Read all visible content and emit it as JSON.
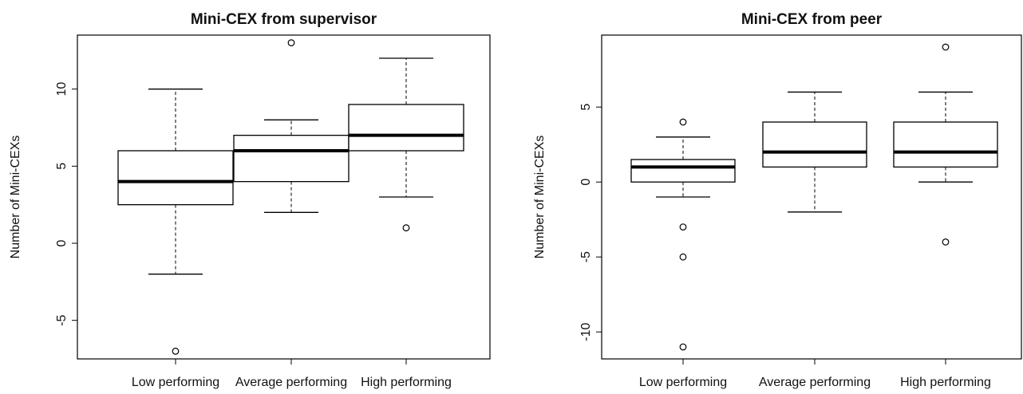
{
  "chart_data": [
    {
      "type": "boxplot",
      "title": "Mini-CEX from supervisor",
      "xlabel": "",
      "ylabel": "Number of Mini-CEXs",
      "categories": [
        "Low performing",
        "Average performing",
        "High performing"
      ],
      "ylim": [
        -7.5,
        13.5
      ],
      "yticks": [
        "-5",
        "0",
        "5",
        "10"
      ],
      "yticks_values": [
        -5,
        0,
        5,
        10
      ],
      "boxes": [
        {
          "category": "Low performing",
          "whisker_low": -2,
          "q1": 2.5,
          "median": 4,
          "q3": 6,
          "whisker_high": 10,
          "outliers": [
            -7
          ]
        },
        {
          "category": "Average performing",
          "whisker_low": 2,
          "q1": 4,
          "median": 6,
          "q3": 7,
          "whisker_high": 8,
          "outliers": [
            13
          ]
        },
        {
          "category": "High performing",
          "whisker_low": 3,
          "q1": 6,
          "median": 7,
          "q3": 9,
          "whisker_high": 12,
          "outliers": [
            1
          ]
        }
      ]
    },
    {
      "type": "boxplot",
      "title": "Mini-CEX from peer",
      "xlabel": "",
      "ylabel": "Number of Mini-CEXs",
      "categories": [
        "Low performing",
        "Average performing",
        "High performing"
      ],
      "ylim": [
        -11.8,
        9.8
      ],
      "yticks": [
        "-10",
        "-5",
        "0",
        "5"
      ],
      "yticks_values": [
        -10,
        -5,
        0,
        5
      ],
      "boxes": [
        {
          "category": "Low performing",
          "whisker_low": -1,
          "q1": 0,
          "median": 1,
          "q3": 1.5,
          "whisker_high": 3,
          "outliers": [
            4,
            -3,
            -5,
            -11
          ]
        },
        {
          "category": "Average performing",
          "whisker_low": -2,
          "q1": 1,
          "median": 2,
          "q3": 4,
          "whisker_high": 6,
          "outliers": []
        },
        {
          "category": "High performing",
          "whisker_low": 0,
          "q1": 1,
          "median": 2,
          "q3": 4,
          "whisker_high": 6,
          "outliers": [
            9,
            -4
          ]
        }
      ]
    }
  ]
}
